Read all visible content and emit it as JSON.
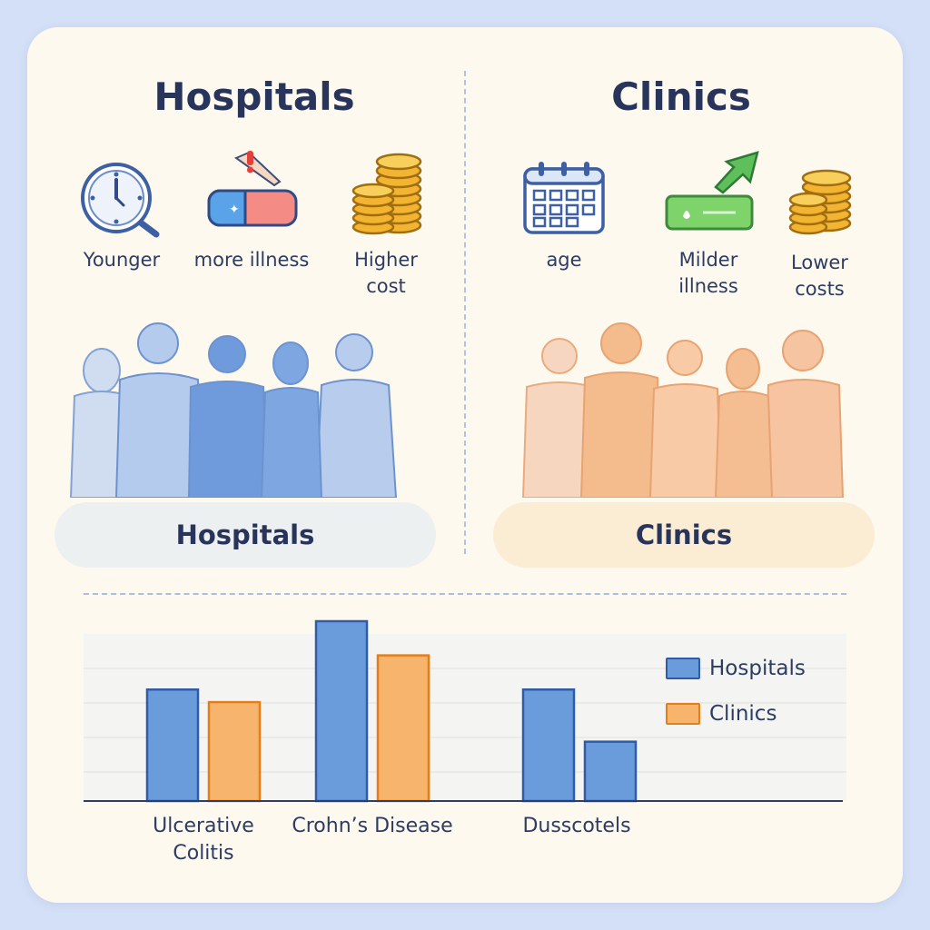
{
  "hospitals": {
    "title": "Hospitals",
    "pill_label": "Hospitals",
    "features": [
      {
        "label": "Younger",
        "icon": "clock-icon"
      },
      {
        "label": "more illness",
        "icon": "thermometer-icon"
      },
      {
        "label": "Higher cost",
        "icon": "coin-stack-icon"
      }
    ],
    "color": "#6b9ad8"
  },
  "clinics": {
    "title": "Clinics",
    "pill_label": "Clinics",
    "features": [
      {
        "label": "age",
        "icon": "calendar-icon"
      },
      {
        "label": "Milder illness",
        "icon": "plant-arrow-icon"
      },
      {
        "label": "Lower costs",
        "icon": "coin-stack-icon"
      }
    ],
    "color": "#f6b46d"
  },
  "chart_data": {
    "type": "bar",
    "categories": [
      "Ulcerative Colitis",
      "Crohn’s Disease",
      "Dusscotels"
    ],
    "series": [
      {
        "name": "Hospitals",
        "values": [
          0.62,
          1.0,
          0.62
        ],
        "colors": [
          "#6a9cdc",
          "#6a9cdc",
          "#6a9cdc"
        ]
      },
      {
        "name": "Clinics",
        "values": [
          0.55,
          0.81,
          0.33
        ],
        "colors": [
          "#f6b46d",
          "#f6b46d",
          "#6a9cdc"
        ]
      }
    ],
    "legend": {
      "position": "top-right",
      "entries": [
        "Hospitals",
        "Clinics"
      ]
    },
    "ylim": [
      0,
      1
    ],
    "grid": true,
    "title": "",
    "xlabel": "",
    "ylabel": ""
  },
  "legend_colors": {
    "Hospitals": "#6a9cdc",
    "Clinics": "#f6b46d"
  }
}
